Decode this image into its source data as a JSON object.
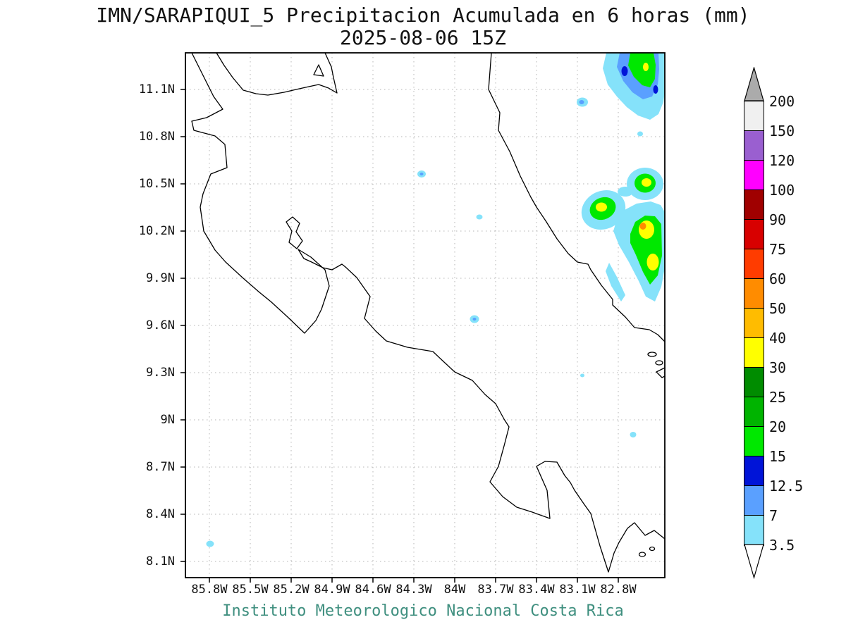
{
  "title": {
    "line1": "IMN/SARAPIQUI_5 Precipitacion Acumulada en 6 horas (mm)",
    "line2": "2025-08-06 15Z"
  },
  "footer": {
    "caption": "Instituto Meteorologico Nacional Costa Rica"
  },
  "axes": {
    "lat_ticks": [
      "11.1N",
      "10.8N",
      "10.5N",
      "10.2N",
      "9.9N",
      "9.6N",
      "9.3N",
      "9N",
      "8.7N",
      "8.4N",
      "8.1N"
    ],
    "lon_ticks": [
      "85.8W",
      "85.5W",
      "85.2W",
      "84.9W",
      "84.6W",
      "84.3W",
      "84W",
      "83.7W",
      "83.4W",
      "83.1W",
      "82.8W"
    ]
  },
  "colorbar": {
    "unit": "mm",
    "labels": [
      "200",
      "150",
      "120",
      "100",
      "90",
      "75",
      "60",
      "50",
      "40",
      "30",
      "25",
      "20",
      "15",
      "12.5",
      "7",
      "3.5"
    ],
    "segment_colors_top_to_bottom": [
      "#f0f0f0",
      "#9a5fd0",
      "#ff00ff",
      "#a00000",
      "#d80000",
      "#ff3c00",
      "#ff8c00",
      "#ffbc00",
      "#ffff00",
      "#008c00",
      "#00b400",
      "#00e800",
      "#0014d8",
      "#5aa0ff",
      "#85e2fa"
    ],
    "above_arrow_color": "#ababab",
    "below_arrow_color": "#ffffff"
  },
  "colors": {
    "cyan": "#85e2fa",
    "blue": "#5aa0ff",
    "darkblue": "#0014d8",
    "green": "#00e800",
    "yellow": "#ffff00",
    "orange": "#ff8c00",
    "caption": "#3f8f7f",
    "coastline": "#000000",
    "grid": "#b4b4b4"
  },
  "map": {
    "region": "Costa Rica",
    "lat_tick_range": [
      "8.1N",
      "11.1N"
    ],
    "lon_tick_range": [
      "85.8W",
      "82.8W"
    ],
    "grid_interval_deg": 0.3,
    "precipitation_features": [
      {
        "location": "Caribbean sea near 11.0N 82.9W (top-right, touches map edge)",
        "levels_mm": "3.5 to 40"
      },
      {
        "location": "Caribbean coast cluster 9.8N-10.6N, 82.7W-83.2W",
        "levels_mm": "3.5 to 60"
      },
      {
        "location": "small isolated cells at ~10.5N 84.3W, ~10.3N 83.8W, ~9.6N 83.9W, ~9.3N 83.1W, ~8.9N 82.7W, ~8.2N 85.8W",
        "levels_mm": "3.5 to 12.5"
      }
    ]
  }
}
